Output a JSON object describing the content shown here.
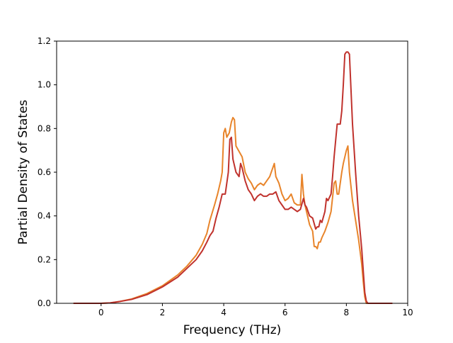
{
  "chart_data": {
    "type": "line",
    "title": "",
    "xlabel": "Frequency (THz)",
    "ylabel": "Partial Density of States",
    "xlim": [
      -1.45,
      10
    ],
    "ylim": [
      0,
      1.2
    ],
    "xticks": [
      0,
      2,
      4,
      6,
      8,
      10
    ],
    "yticks": [
      0.0,
      0.2,
      0.4,
      0.6,
      0.8,
      1.0,
      1.2
    ],
    "xtick_labels": [
      "0",
      "2",
      "4",
      "6",
      "8",
      "10"
    ],
    "ytick_labels": [
      "0.0",
      "0.2",
      "0.4",
      "0.6",
      "0.8",
      "1.0",
      "1.2"
    ],
    "grid": false,
    "legend": "none",
    "series": [
      {
        "color": "#e8842a",
        "x": [
          -0.9,
          0.0,
          0.3,
          0.6,
          1.0,
          1.5,
          2.0,
          2.5,
          2.8,
          3.1,
          3.3,
          3.45,
          3.55,
          3.7,
          3.8,
          3.9,
          3.95,
          4.0,
          4.05,
          4.1,
          4.18,
          4.25,
          4.3,
          4.35,
          4.4,
          4.6,
          4.7,
          4.8,
          4.9,
          5.0,
          5.1,
          5.2,
          5.3,
          5.4,
          5.5,
          5.6,
          5.65,
          5.7,
          5.8,
          5.9,
          6.0,
          6.1,
          6.2,
          6.3,
          6.4,
          6.5,
          6.55,
          6.6,
          6.65,
          6.7,
          6.8,
          6.9,
          6.95,
          7.0,
          7.05,
          7.1,
          7.15,
          7.2,
          7.3,
          7.4,
          7.5,
          7.6,
          7.65,
          7.7,
          7.75,
          7.8,
          7.85,
          7.9,
          8.0,
          8.05,
          8.1,
          8.2,
          8.3,
          8.4,
          8.5,
          8.55,
          8.6,
          8.65,
          8.7,
          9.5
        ],
        "y": [
          0.0,
          0.0,
          0.002,
          0.008,
          0.02,
          0.045,
          0.08,
          0.13,
          0.17,
          0.22,
          0.27,
          0.32,
          0.38,
          0.45,
          0.5,
          0.56,
          0.6,
          0.78,
          0.8,
          0.76,
          0.78,
          0.83,
          0.85,
          0.84,
          0.72,
          0.67,
          0.6,
          0.57,
          0.55,
          0.52,
          0.54,
          0.55,
          0.54,
          0.56,
          0.58,
          0.62,
          0.64,
          0.58,
          0.55,
          0.5,
          0.47,
          0.48,
          0.5,
          0.46,
          0.45,
          0.45,
          0.59,
          0.5,
          0.45,
          0.42,
          0.36,
          0.33,
          0.26,
          0.26,
          0.25,
          0.28,
          0.28,
          0.3,
          0.33,
          0.37,
          0.42,
          0.55,
          0.56,
          0.5,
          0.5,
          0.55,
          0.6,
          0.64,
          0.7,
          0.72,
          0.6,
          0.47,
          0.38,
          0.29,
          0.18,
          0.1,
          0.03,
          0.0,
          0.0,
          0.0
        ]
      },
      {
        "color": "#c0322d",
        "x": [
          -0.9,
          0.0,
          0.3,
          0.6,
          1.0,
          1.5,
          2.0,
          2.5,
          2.8,
          3.1,
          3.3,
          3.45,
          3.55,
          3.65,
          3.75,
          3.85,
          3.95,
          4.0,
          4.05,
          4.1,
          4.15,
          4.2,
          4.25,
          4.3,
          4.4,
          4.5,
          4.55,
          4.6,
          4.7,
          4.8,
          4.9,
          5.0,
          5.1,
          5.2,
          5.3,
          5.4,
          5.5,
          5.6,
          5.7,
          5.8,
          5.9,
          6.0,
          6.1,
          6.2,
          6.3,
          6.4,
          6.5,
          6.6,
          6.65,
          6.7,
          6.8,
          6.9,
          7.0,
          7.05,
          7.1,
          7.15,
          7.2,
          7.3,
          7.35,
          7.4,
          7.5,
          7.55,
          7.6,
          7.7,
          7.8,
          7.85,
          7.9,
          7.95,
          8.0,
          8.05,
          8.1,
          8.15,
          8.2,
          8.3,
          8.4,
          8.5,
          8.55,
          8.6,
          8.65,
          8.7,
          9.5
        ],
        "y": [
          0.0,
          0.0,
          0.002,
          0.008,
          0.018,
          0.04,
          0.075,
          0.12,
          0.16,
          0.2,
          0.24,
          0.28,
          0.31,
          0.33,
          0.39,
          0.44,
          0.5,
          0.5,
          0.5,
          0.55,
          0.6,
          0.75,
          0.76,
          0.66,
          0.6,
          0.58,
          0.64,
          0.62,
          0.56,
          0.52,
          0.5,
          0.47,
          0.49,
          0.5,
          0.49,
          0.49,
          0.5,
          0.5,
          0.51,
          0.47,
          0.45,
          0.43,
          0.43,
          0.44,
          0.43,
          0.42,
          0.43,
          0.48,
          0.45,
          0.44,
          0.4,
          0.39,
          0.34,
          0.35,
          0.35,
          0.38,
          0.37,
          0.42,
          0.48,
          0.47,
          0.5,
          0.58,
          0.67,
          0.82,
          0.82,
          0.88,
          1.0,
          1.14,
          1.15,
          1.15,
          1.14,
          0.98,
          0.82,
          0.6,
          0.4,
          0.25,
          0.15,
          0.05,
          0.01,
          0.0,
          0.0
        ]
      }
    ]
  }
}
